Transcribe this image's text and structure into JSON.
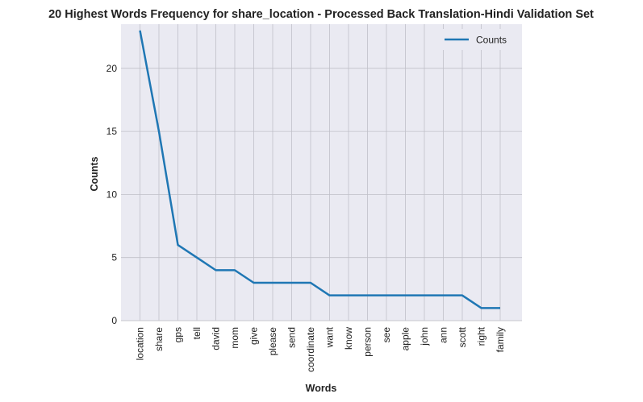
{
  "chart_data": {
    "type": "line",
    "title": "20 Highest Words Frequency for share_location - Processed Back Translation-Hindi Validation Set",
    "xlabel": "Words",
    "ylabel": "Counts",
    "categories": [
      "location",
      "share",
      "gps",
      "tell",
      "david",
      "mom",
      "give",
      "please",
      "send",
      "coordinate",
      "want",
      "know",
      "person",
      "see",
      "apple",
      "john",
      "ann",
      "scott",
      "right",
      "family"
    ],
    "series": [
      {
        "name": "Counts",
        "color": "#1f77b4",
        "values": [
          23,
          15,
          6,
          5,
          4,
          4,
          3,
          3,
          3,
          3,
          2,
          2,
          2,
          2,
          2,
          2,
          2,
          2,
          1,
          1
        ]
      }
    ],
    "yticks": [
      0,
      5,
      10,
      15,
      20
    ],
    "ylim": [
      0,
      23.5
    ],
    "grid": true,
    "legend_position": "top-right",
    "colors": {
      "plot_background": "#eaeaf2",
      "grid": "#c0c0c8",
      "line": "#1f77b4"
    }
  }
}
